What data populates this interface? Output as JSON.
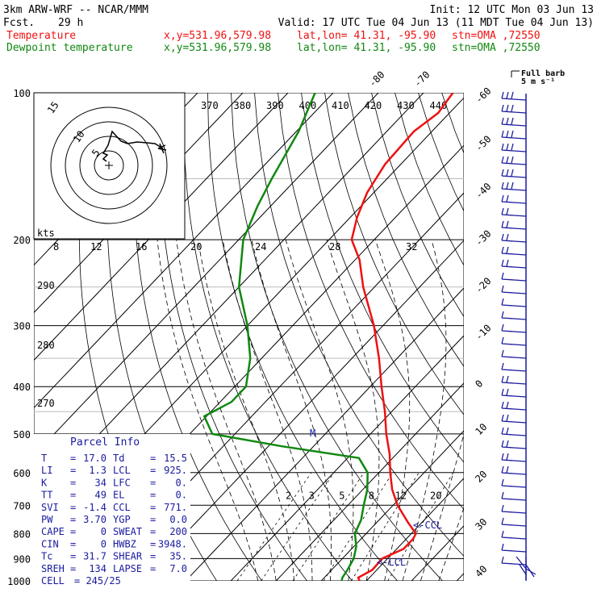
{
  "header": {
    "left1": "3km ARW-WRF -- NCAR/MMM",
    "left2_label": "Fcst.",
    "left2_value": "29 h",
    "init": "Init: 12 UTC Mon 03 Jun 13",
    "valid": "Valid: 17 UTC Tue 04 Jun 13 (11 MDT Tue 04 Jun 13)",
    "temp_label": "Temperature",
    "temp_coords": "x,y=531.96,579.98",
    "temp_latlon": "lat,lon= 41.31, -95.90",
    "temp_stn": "stn=OMA ,72550",
    "dew_label": "Dewpoint temperature",
    "dew_coords": "x,y=531.96,579.98",
    "dew_latlon": "lat,lon= 41.31, -95.90",
    "dew_stn": "stn=OMA ,72550"
  },
  "barb_legend": {
    "line1": "Full barb",
    "line2": "5 m s⁻¹"
  },
  "hodograph": {
    "units": "kts",
    "speed_labels": [
      "8",
      "12",
      "16",
      "20",
      "24",
      "28",
      "32"
    ],
    "ring_labels": [
      "5",
      "10",
      "15"
    ]
  },
  "parcel_info": {
    "title": "Parcel Info",
    "rows": [
      {
        "k1": "T",
        "v1": "17.0",
        "k2": "Td",
        "v2": "15.5"
      },
      {
        "k1": "LI",
        "v1": "1.3",
        "k2": "LCL",
        "v2": "925."
      },
      {
        "k1": "K",
        "v1": "34",
        "k2": "LFC",
        "v2": "0."
      },
      {
        "k1": "TT",
        "v1": "49",
        "k2": "EL",
        "v2": "0."
      },
      {
        "k1": "SVI",
        "v1": "-1.4",
        "k2": "CCL",
        "v2": "771."
      },
      {
        "k1": "PW",
        "v1": "3.70",
        "k2": "YGP",
        "v2": "0.0"
      },
      {
        "k1": "CAPE",
        "v1": "0",
        "k2": "SWEAT",
        "v2": "200"
      },
      {
        "k1": "CIN",
        "v1": "0",
        "k2": "HWBZ",
        "v2": "3948."
      },
      {
        "k1": "Tc",
        "v1": "31.7",
        "k2": "SHEAR",
        "v2": "35."
      },
      {
        "k1": "SREH",
        "v1": "134",
        "k2": "LAPSE",
        "v2": "7.0"
      },
      {
        "k1": "CELL",
        "v1": "245/25",
        "k2": "",
        "v2": ""
      }
    ]
  },
  "annotations": {
    "ccl": "<-CCL",
    "lcl": "<-LCL",
    "m": "M"
  },
  "colors": {
    "temperature": "#ee1111",
    "dewpoint": "#118811",
    "barbs": "#1a1aa0",
    "parcel": "#1a1aa0"
  },
  "chart_data": {
    "type": "line",
    "skewt": true,
    "y_scale": "log",
    "pressure_levels": [
      100,
      200,
      300,
      400,
      500,
      600,
      700,
      800,
      900,
      1000
    ],
    "isotherm_labels": [
      -80,
      -70,
      -60,
      -50,
      -40,
      -30,
      -20,
      -10,
      0,
      10,
      20,
      30,
      40
    ],
    "theta_labels": [
      370,
      380,
      390,
      400,
      410,
      420,
      430,
      440
    ],
    "theta_side_labels": [
      290,
      280,
      270
    ],
    "mixing_ratio_labels": [
      2,
      3,
      5,
      8,
      12,
      20
    ],
    "series": [
      {
        "name": "Temperature",
        "points": [
          {
            "p": 1000,
            "t": 18.5
          },
          {
            "p": 985,
            "t": 17.5
          },
          {
            "p": 950,
            "t": 19.0
          },
          {
            "p": 900,
            "t": 18.8
          },
          {
            "p": 860,
            "t": 21.5
          },
          {
            "p": 820,
            "t": 21.5
          },
          {
            "p": 800,
            "t": 21.0
          },
          {
            "p": 760,
            "t": 17.0
          },
          {
            "p": 700,
            "t": 11.0
          },
          {
            "p": 650,
            "t": 6.5
          },
          {
            "p": 600,
            "t": 2.5
          },
          {
            "p": 550,
            "t": -1.5
          },
          {
            "p": 500,
            "t": -6.5
          },
          {
            "p": 450,
            "t": -11.5
          },
          {
            "p": 400,
            "t": -17.5
          },
          {
            "p": 350,
            "t": -24.0
          },
          {
            "p": 300,
            "t": -32.0
          },
          {
            "p": 250,
            "t": -42.5
          },
          {
            "p": 220,
            "t": -49.0
          },
          {
            "p": 200,
            "t": -55.0
          },
          {
            "p": 180,
            "t": -58.5
          },
          {
            "p": 160,
            "t": -61.5
          },
          {
            "p": 140,
            "t": -63.5
          },
          {
            "p": 120,
            "t": -64.0
          },
          {
            "p": 110,
            "t": -62.5
          },
          {
            "p": 100,
            "t": -63.5
          }
        ]
      },
      {
        "name": "Dewpoint temperature",
        "points": [
          {
            "p": 1000,
            "t": 14.5
          },
          {
            "p": 985,
            "t": 14.0
          },
          {
            "p": 950,
            "t": 13.5
          },
          {
            "p": 900,
            "t": 12.5
          },
          {
            "p": 850,
            "t": 10.5
          },
          {
            "p": 800,
            "t": 7.5
          },
          {
            "p": 750,
            "t": 6.0
          },
          {
            "p": 700,
            "t": 3.5
          },
          {
            "p": 650,
            "t": 1.0
          },
          {
            "p": 600,
            "t": -2.5
          },
          {
            "p": 560,
            "t": -7.5
          },
          {
            "p": 530,
            "t": -27.0
          },
          {
            "p": 500,
            "t": -45.0
          },
          {
            "p": 460,
            "t": -50.5
          },
          {
            "p": 430,
            "t": -47.5
          },
          {
            "p": 400,
            "t": -47.5
          },
          {
            "p": 350,
            "t": -52.5
          },
          {
            "p": 300,
            "t": -60.0
          },
          {
            "p": 250,
            "t": -70.0
          },
          {
            "p": 200,
            "t": -79.0
          },
          {
            "p": 170,
            "t": -83.0
          },
          {
            "p": 150,
            "t": -85.5
          },
          {
            "p": 120,
            "t": -89.5
          },
          {
            "p": 100,
            "t": -94.0
          }
        ]
      }
    ]
  }
}
